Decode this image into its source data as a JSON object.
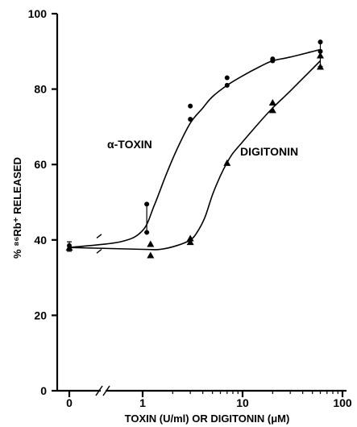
{
  "chart_data": {
    "type": "scatter",
    "xlabel": "TOXIN (U/ml) OR DIGITONIN (μM)",
    "ylabel": "% ⁸⁶Rb⁺ RELEASED",
    "x_scale": "log",
    "x_axis_break": "between 0 and 1",
    "xlim": [
      0,
      100
    ],
    "ylim": [
      0,
      100
    ],
    "xticks": [
      "0",
      "1",
      "10",
      "100"
    ],
    "yticks": [
      0,
      20,
      40,
      60,
      80,
      100
    ],
    "grid": false,
    "legend": "none",
    "series": [
      {
        "name": "α-TOXIN",
        "marker": "circle",
        "points": [
          {
            "x": 0,
            "y": 38.5
          },
          {
            "x": 1.1,
            "y": 42
          },
          {
            "x": 1.1,
            "y": 49.5
          },
          {
            "x": 3,
            "y": 72
          },
          {
            "x": 3,
            "y": 75.5
          },
          {
            "x": 7,
            "y": 81
          },
          {
            "x": 7,
            "y": 83
          },
          {
            "x": 20,
            "y": 87.5
          },
          {
            "x": 20,
            "y": 88
          },
          {
            "x": 60,
            "y": 90
          },
          {
            "x": 60,
            "y": 92.5
          }
        ],
        "curve": [
          [
            0,
            38
          ],
          [
            0.6,
            39.5
          ],
          [
            1,
            42.5
          ],
          [
            1.3,
            49
          ],
          [
            1.7,
            57
          ],
          [
            2.2,
            64
          ],
          [
            3,
            71
          ],
          [
            4,
            75
          ],
          [
            5,
            78
          ],
          [
            7,
            81
          ],
          [
            10,
            83.5
          ],
          [
            15,
            86
          ],
          [
            20,
            87.5
          ],
          [
            30,
            88.5
          ],
          [
            60,
            90.5
          ]
        ]
      },
      {
        "name": "DIGITONIN",
        "marker": "triangle",
        "points": [
          {
            "x": 0,
            "y": 38
          },
          {
            "x": 1.2,
            "y": 36
          },
          {
            "x": 1.2,
            "y": 39
          },
          {
            "x": 3,
            "y": 39.5
          },
          {
            "x": 3,
            "y": 40.5
          },
          {
            "x": 7,
            "y": 60.5
          },
          {
            "x": 20,
            "y": 74.5
          },
          {
            "x": 20,
            "y": 76.5
          },
          {
            "x": 60,
            "y": 86
          },
          {
            "x": 60,
            "y": 89
          }
        ],
        "curve": [
          [
            0,
            38
          ],
          [
            1,
            37.5
          ],
          [
            1.5,
            37.5
          ],
          [
            2.2,
            38.5
          ],
          [
            3,
            40
          ],
          [
            3.5,
            42
          ],
          [
            4.2,
            46
          ],
          [
            5,
            52
          ],
          [
            6,
            57
          ],
          [
            7,
            60.5
          ],
          [
            8,
            63
          ],
          [
            10,
            66
          ],
          [
            14,
            70.5
          ],
          [
            20,
            75
          ],
          [
            30,
            79.5
          ],
          [
            60,
            87.5
          ]
        ]
      }
    ],
    "error_bars": [
      {
        "x": 0,
        "low": 37,
        "high": 39.5
      },
      {
        "x": 1.1,
        "low": 42,
        "high": 49.5
      },
      {
        "x": 60,
        "low": 86,
        "high": 92.5
      }
    ]
  }
}
